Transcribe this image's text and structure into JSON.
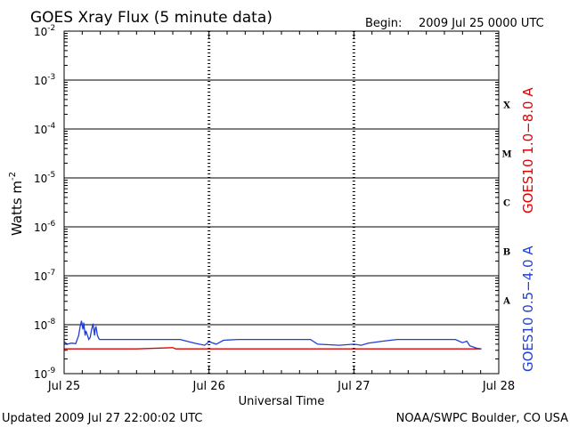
{
  "header": {
    "title": "GOES Xray Flux (5 minute data)",
    "begin_label": "Begin:",
    "begin_value": "2009 Jul 25 0000 UTC"
  },
  "footer": {
    "updated": "Updated 2009 Jul 27 22:00:02 UTC",
    "credit": "NOAA/SWPC Boulder, CO USA"
  },
  "colors": {
    "long_channel": "#e00000",
    "short_channel": "#1f3fd6",
    "axis": "#000000",
    "background": "#ffffff"
  },
  "chart_data": {
    "type": "line",
    "title": "GOES Xray Flux (5 minute data)",
    "xlabel": "Universal Time",
    "ylabel": "Watts m",
    "ylabel_superscript": "-2",
    "y_scale": "log",
    "ylim": [
      1e-09,
      0.01
    ],
    "xlim": [
      "2009-07-25 00:00",
      "2009-07-28 00:00"
    ],
    "y_ticks": [
      {
        "value": 1e-09,
        "base": "10",
        "exp": "-9"
      },
      {
        "value": 1e-08,
        "base": "10",
        "exp": "-8"
      },
      {
        "value": 1e-07,
        "base": "10",
        "exp": "-7"
      },
      {
        "value": 1e-06,
        "base": "10",
        "exp": "-6"
      },
      {
        "value": 1e-05,
        "base": "10",
        "exp": "-5"
      },
      {
        "value": 0.0001,
        "base": "10",
        "exp": "-4"
      },
      {
        "value": 0.001,
        "base": "10",
        "exp": "-3"
      },
      {
        "value": 0.01,
        "base": "10",
        "exp": "-2"
      }
    ],
    "x_ticks": [
      {
        "label": "Jul 25",
        "day": 0
      },
      {
        "label": "Jul 26",
        "day": 1
      },
      {
        "label": "Jul 27",
        "day": 2
      },
      {
        "label": "Jul 28",
        "day": 3
      }
    ],
    "flare_classes": [
      {
        "label": "A",
        "value": 1e-08
      },
      {
        "label": "B",
        "value": 1e-07
      },
      {
        "label": "C",
        "value": 1e-06
      },
      {
        "label": "M",
        "value": 1e-05
      },
      {
        "label": "X",
        "value": 0.0001
      }
    ],
    "flare_class_lines": [
      1e-08,
      1e-07,
      1e-06,
      1e-05,
      0.0001,
      0.001
    ],
    "grid": "horizontal at flare-class decades; dotted vertical day markers",
    "series": [
      {
        "name": "GOES10 1.0-8.0 A",
        "color": "#e00000",
        "x_days": [
          0.0,
          0.5,
          0.75,
          0.77,
          1.0,
          1.5,
          2.0,
          2.5,
          2.88
        ],
        "y": [
          3.2e-09,
          3.2e-09,
          3.4e-09,
          3.2e-09,
          3.2e-09,
          3.2e-09,
          3.2e-09,
          3.2e-09,
          3.2e-09
        ]
      },
      {
        "name": "GOES10 0.5-4.0 A",
        "color": "#1f3fd6",
        "x_days": [
          0.0,
          0.02,
          0.05,
          0.08,
          0.1,
          0.11,
          0.12,
          0.13,
          0.135,
          0.145,
          0.15,
          0.16,
          0.17,
          0.18,
          0.19,
          0.2,
          0.21,
          0.215,
          0.22,
          0.23,
          0.24,
          0.245,
          0.26,
          0.4,
          0.6,
          0.8,
          0.9,
          0.97,
          1.0,
          1.05,
          1.1,
          1.2,
          1.5,
          1.7,
          1.75,
          1.9,
          2.0,
          2.05,
          2.1,
          2.2,
          2.3,
          2.4,
          2.5,
          2.6,
          2.7,
          2.75,
          2.78,
          2.8,
          2.85,
          2.88
        ],
        "y": [
          4.5e-09,
          4e-09,
          4.2e-09,
          4.1e-09,
          6e-09,
          9e-09,
          1.2e-08,
          8e-09,
          1.1e-08,
          6e-09,
          7.5e-09,
          6.2e-09,
          5e-09,
          5.5e-09,
          8e-09,
          1.05e-08,
          6e-09,
          8.5e-09,
          9e-09,
          6e-09,
          5.2e-09,
          5e-09,
          5e-09,
          5e-09,
          5e-09,
          5e-09,
          4.2e-09,
          3.8e-09,
          4.5e-09,
          4e-09,
          4.8e-09,
          5e-09,
          5e-09,
          5e-09,
          4e-09,
          3.8e-09,
          4e-09,
          3.8e-09,
          4.2e-09,
          4.6e-09,
          5e-09,
          5e-09,
          5e-09,
          5e-09,
          5e-09,
          4.3e-09,
          4.6e-09,
          3.7e-09,
          3.3e-09,
          3.2e-09
        ]
      }
    ],
    "right_labels": [
      {
        "text": "GOES10 1.0−8.0 A",
        "color": "#e00000"
      },
      {
        "text": "GOES10 0.5−4.0 A",
        "color": "#1f3fd6"
      }
    ]
  }
}
